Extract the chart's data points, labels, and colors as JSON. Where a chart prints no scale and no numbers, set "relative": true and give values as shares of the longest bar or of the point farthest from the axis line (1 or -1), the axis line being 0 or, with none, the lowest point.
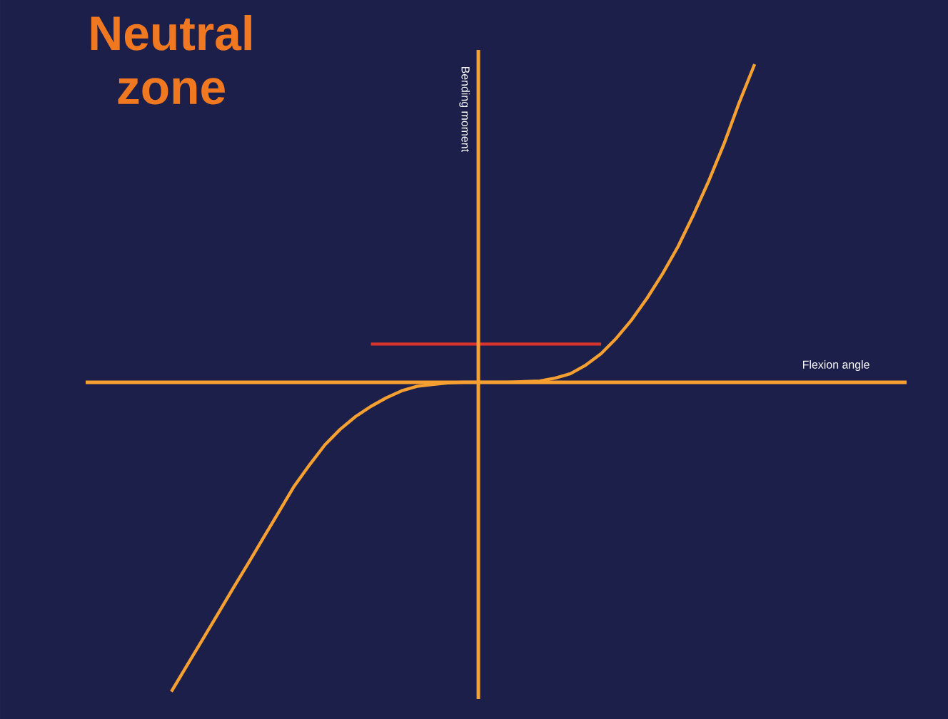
{
  "chart_data": {
    "type": "line",
    "title": "Neutral zone",
    "xlabel": "Flexion angle",
    "ylabel": "Bending moment",
    "relative": true,
    "categories": [
      null,
      null,
      null,
      null,
      null,
      null,
      null,
      null,
      null,
      null,
      null,
      null,
      null,
      null,
      null,
      null,
      null,
      null,
      null,
      null,
      null,
      null,
      null,
      null,
      null,
      null,
      null,
      null,
      null,
      null,
      null,
      null,
      null,
      null,
      null,
      null,
      null,
      null,
      null,
      null,
      null
    ],
    "series": [
      {
        "color": "#f5a030",
        "values": [
          -0.973,
          -0.892,
          -0.812,
          -0.731,
          -0.65,
          -0.57,
          -0.489,
          -0.408,
          -0.327,
          -0.26,
          -0.197,
          -0.148,
          -0.108,
          -0.076,
          -0.049,
          -0.027,
          -0.013,
          -0.007,
          -0.002,
          0,
          0,
          0,
          0,
          0.002,
          0.004,
          0.013,
          0.027,
          0.054,
          0.09,
          0.139,
          0.197,
          0.265,
          0.341,
          0.426,
          0.525,
          0.632,
          0.749,
          0.88,
          1,
          null,
          null
        ]
      },
      {
        "color": "#d9342b",
        "values": [
          null,
          null,
          null,
          null,
          null,
          null,
          null,
          null,
          null,
          null,
          null,
          null,
          null,
          0.12,
          null,
          null,
          null,
          null,
          null,
          null,
          null,
          null,
          null,
          null,
          null,
          null,
          null,
          null,
          0.12,
          null,
          null,
          null,
          null,
          null,
          null,
          null,
          null,
          null,
          null,
          null,
          null
        ]
      }
    ],
    "ref_lines": [
      {
        "axis": "y",
        "value": 0,
        "color": "#f5a030"
      }
    ],
    "marker": "none",
    "line_style": "solid"
  }
}
